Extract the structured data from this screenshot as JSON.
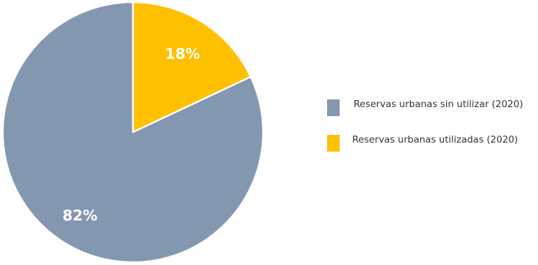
{
  "chart_data": {
    "type": "pie",
    "slices": [
      {
        "label": "Reservas urbanas utilizadas (2020)",
        "value": 18,
        "value_label": "18%",
        "color": "#FFC000"
      },
      {
        "label": "Reservas urbanas sin utilizar (2020)",
        "value": 82,
        "value_label": "82%",
        "color": "#8497B0"
      }
    ],
    "legend": {
      "placement": "right",
      "entries": [
        {
          "label": "Reservas urbanas sin utilizar (2020)",
          "color": "#8497B0"
        },
        {
          "label": "Reservas urbanas utilizadas (2020)",
          "color": "#FFC000"
        }
      ]
    }
  }
}
